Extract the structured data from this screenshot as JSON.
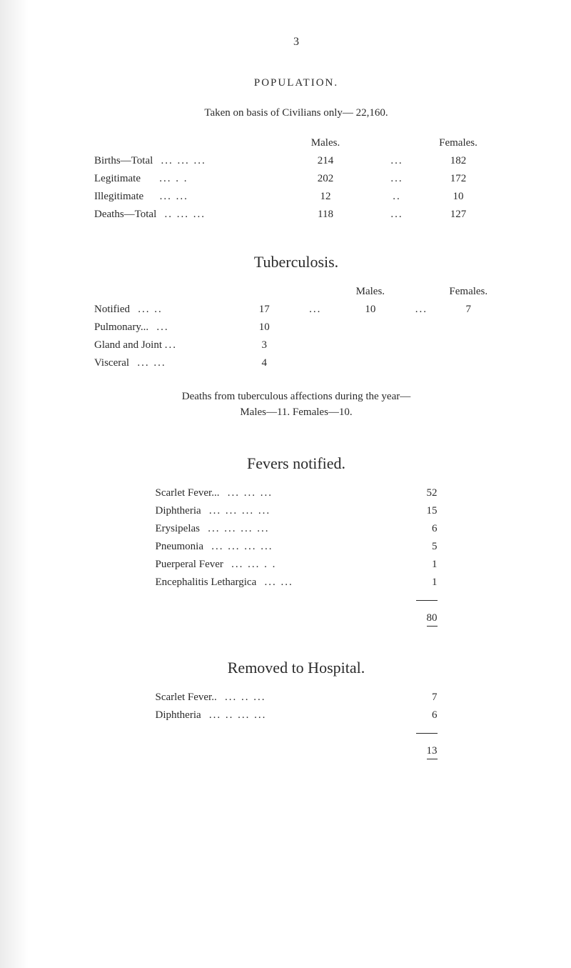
{
  "page_number": "3",
  "population": {
    "title": "POPULATION.",
    "subtitle": "Taken on basis of Civilians only— 22,160.",
    "headers": {
      "males": "Males.",
      "females": "Females."
    },
    "rows": [
      {
        "label": "Births—Total",
        "dots1": "...   ...   ...",
        "males": "214",
        "dots2": "...",
        "females": "182",
        "indent": false
      },
      {
        "label": "Legitimate",
        "dots1": "...   . .",
        "males": "202",
        "dots2": "...",
        "females": "172",
        "indent": true
      },
      {
        "label": "Illegitimate",
        "dots1": "...   ...",
        "males": "12",
        "dots2": "..",
        "females": "10",
        "indent": true
      },
      {
        "label": "Deaths—Total",
        "dots1": "..   ...   ...",
        "males": "118",
        "dots2": "...",
        "females": "127",
        "indent": false
      }
    ]
  },
  "tuberculosis": {
    "title": "Tuberculosis.",
    "headers": {
      "males": "Males.",
      "females": "Females."
    },
    "rows": [
      {
        "label": "Notified",
        "dots1": "...   ..",
        "n1": "17",
        "dots2": "...",
        "n2": "10",
        "dots3": "...",
        "n3": "7"
      },
      {
        "label": "Pulmonary...",
        "dots1": "...",
        "n1": "10",
        "dots2": "",
        "n2": "",
        "dots3": "",
        "n3": ""
      },
      {
        "label": "Gland and Joint",
        "dots1": "...",
        "n1": "3",
        "dots2": "",
        "n2": "",
        "dots3": "",
        "n3": ""
      },
      {
        "label": "Visceral",
        "dots1": "...   ...",
        "n1": "4",
        "dots2": "",
        "n2": "",
        "dots3": "",
        "n3": ""
      }
    ],
    "note": "Deaths from tuberculous affections during the year—",
    "note_sub": "Males—11.     Females—10."
  },
  "fevers": {
    "title": "Fevers notified.",
    "rows": [
      {
        "label": "Scarlet Fever...",
        "dots": "...   ...   ...",
        "value": "52"
      },
      {
        "label": "Diphtheria",
        "dots": "...   ...   ...   ...",
        "value": "15"
      },
      {
        "label": "Erysipelas",
        "dots": "...   ...   ...   ...",
        "value": "6"
      },
      {
        "label": "Pneumonia",
        "dots": "...   ...   ...   ...",
        "value": "5"
      },
      {
        "label": "Puerperal Fever",
        "dots": "...   ...   . .",
        "value": "1"
      },
      {
        "label": "Encephalitis Lethargica",
        "dots": "...   ...",
        "value": "1"
      }
    ],
    "total": "80"
  },
  "removed": {
    "title": "Removed to Hospital.",
    "rows": [
      {
        "label": "Scarlet Fever..",
        "dots": "...   ..   ...",
        "value": "7"
      },
      {
        "label": "Diphtheria",
        "dots": "...   ..   ...   ...",
        "value": "6"
      }
    ],
    "total": "13"
  }
}
